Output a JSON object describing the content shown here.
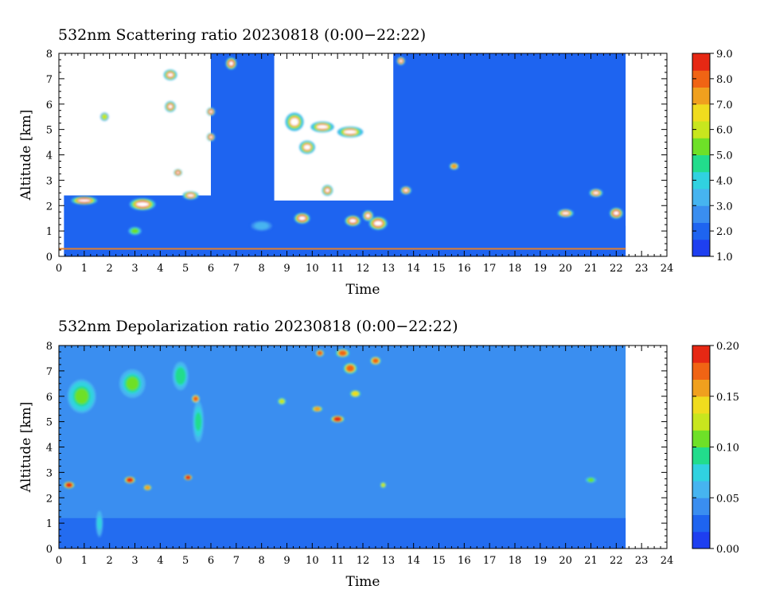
{
  "chart_data": [
    {
      "type": "heatmap",
      "title": "532nm Scattering ratio  20230818 (0:00−22:22)",
      "xlabel": "Time",
      "ylabel": "Altitude [km]",
      "xlim": [
        0,
        24
      ],
      "ylim": [
        0,
        8
      ],
      "x_ticks": [
        "0",
        "1",
        "2",
        "3",
        "4",
        "5",
        "6",
        "7",
        "8",
        "9",
        "10",
        "11",
        "12",
        "13",
        "14",
        "15",
        "16",
        "17",
        "18",
        "19",
        "20",
        "21",
        "22",
        "23",
        "24"
      ],
      "y_ticks": [
        "0",
        "1",
        "2",
        "3",
        "4",
        "5",
        "6",
        "7",
        "8"
      ],
      "data_end_time": 22.37,
      "colorbar": {
        "min": 1.0,
        "max": 9.0,
        "ticks": [
          "1.0",
          "2.0",
          "3.0",
          "4.0",
          "5.0",
          "6.0",
          "7.0",
          "8.0",
          "9.0"
        ],
        "colors": [
          "#1e3ff0",
          "#1e64f0",
          "#3a8ef0",
          "#46b4f0",
          "#30d2e0",
          "#22dc8c",
          "#6ee028",
          "#c8e61e",
          "#f0dc1e",
          "#f0a01e",
          "#f06414",
          "#e62814"
        ]
      },
      "background_level": 1.8,
      "clear_regions": [
        {
          "t0": 0.0,
          "t1": 6.0,
          "z0": 2.4,
          "z1": 8.0
        },
        {
          "t0": 8.5,
          "t1": 13.2,
          "z0": 2.2,
          "z1": 8.0
        },
        {
          "t0": 0.0,
          "t1": 0.2,
          "z0": 0.0,
          "z1": 8.0
        }
      ],
      "features": [
        {
          "t": 6.8,
          "z": 7.6,
          "w": 0.3,
          "h": 0.35,
          "v": 9
        },
        {
          "t": 9.3,
          "z": 5.3,
          "w": 0.6,
          "h": 0.6,
          "v": 8
        },
        {
          "t": 9.8,
          "z": 4.3,
          "w": 0.5,
          "h": 0.4,
          "v": 8
        },
        {
          "t": 9.6,
          "z": 1.5,
          "w": 0.5,
          "h": 0.3,
          "v": 9
        },
        {
          "t": 10.6,
          "z": 2.6,
          "w": 0.3,
          "h": 0.3,
          "v": 8
        },
        {
          "t": 10.4,
          "z": 5.1,
          "w": 0.8,
          "h": 0.3,
          "v": 8
        },
        {
          "t": 11.5,
          "z": 4.9,
          "w": 0.9,
          "h": 0.3,
          "v": 8
        },
        {
          "t": 11.6,
          "z": 1.4,
          "w": 0.5,
          "h": 0.3,
          "v": 9
        },
        {
          "t": 12.6,
          "z": 1.3,
          "w": 0.6,
          "h": 0.4,
          "v": 9
        },
        {
          "t": 12.2,
          "z": 1.6,
          "w": 0.3,
          "h": 0.3,
          "v": 8
        },
        {
          "t": 13.7,
          "z": 2.6,
          "w": 0.3,
          "h": 0.2,
          "v": 8
        },
        {
          "t": 13.5,
          "z": 7.7,
          "w": 0.2,
          "h": 0.2,
          "v": 8
        },
        {
          "t": 15.6,
          "z": 3.55,
          "w": 0.25,
          "h": 0.15,
          "v": 7
        },
        {
          "t": 20.0,
          "z": 1.7,
          "w": 0.5,
          "h": 0.2,
          "v": 8
        },
        {
          "t": 21.2,
          "z": 2.5,
          "w": 0.4,
          "h": 0.2,
          "v": 8
        },
        {
          "t": 22.0,
          "z": 1.7,
          "w": 0.4,
          "h": 0.3,
          "v": 9
        },
        {
          "t": 1.0,
          "z": 2.2,
          "w": 0.9,
          "h": 0.2,
          "v": 9
        },
        {
          "t": 3.3,
          "z": 2.05,
          "w": 0.9,
          "h": 0.35,
          "v": 9
        },
        {
          "t": 5.2,
          "z": 2.4,
          "w": 0.5,
          "h": 0.2,
          "v": 8
        },
        {
          "t": 4.4,
          "z": 7.15,
          "w": 0.4,
          "h": 0.3,
          "v": 8
        },
        {
          "t": 4.4,
          "z": 5.9,
          "w": 0.3,
          "h": 0.3,
          "v": 8
        },
        {
          "t": 6.0,
          "z": 4.7,
          "w": 0.2,
          "h": 0.2,
          "v": 8
        },
        {
          "t": 6.0,
          "z": 5.7,
          "w": 0.2,
          "h": 0.2,
          "v": 8
        },
        {
          "t": 4.7,
          "z": 3.3,
          "w": 0.2,
          "h": 0.15,
          "v": 8
        },
        {
          "t": 1.8,
          "z": 5.5,
          "w": 0.2,
          "h": 0.2,
          "v": 6
        },
        {
          "t": 3.0,
          "z": 1.0,
          "w": 0.4,
          "h": 0.2,
          "v": 5
        },
        {
          "t": 8.0,
          "z": 1.2,
          "w": 0.8,
          "h": 0.3,
          "v": 3.5
        }
      ]
    },
    {
      "type": "heatmap",
      "title": "532nm Depolarization ratio  20230818 (0:00−22:22)",
      "xlabel": "Time",
      "ylabel": "Altitude [km]",
      "xlim": [
        0,
        24
      ],
      "ylim": [
        0,
        8
      ],
      "x_ticks": [
        "0",
        "1",
        "2",
        "3",
        "4",
        "5",
        "6",
        "7",
        "8",
        "9",
        "10",
        "11",
        "12",
        "13",
        "14",
        "15",
        "16",
        "17",
        "18",
        "19",
        "20",
        "21",
        "22",
        "23",
        "24"
      ],
      "y_ticks": [
        "0",
        "1",
        "2",
        "3",
        "4",
        "5",
        "6",
        "7",
        "8"
      ],
      "data_end_time": 22.37,
      "colorbar": {
        "min": 0.0,
        "max": 0.2,
        "ticks": [
          "0.00",
          "0.05",
          "0.10",
          "0.15",
          "0.20"
        ],
        "colors": [
          "#1e3ff0",
          "#1e64f0",
          "#3a8ef0",
          "#46b4f0",
          "#30d2e0",
          "#22dc8c",
          "#6ee028",
          "#c8e61e",
          "#f0dc1e",
          "#f0a01e",
          "#f06414",
          "#e62814"
        ]
      },
      "background_level": 0.04,
      "features": [
        {
          "t": 2.8,
          "z": 2.7,
          "w": 0.3,
          "h": 0.15,
          "v": 0.2
        },
        {
          "t": 0.4,
          "z": 2.5,
          "w": 0.3,
          "h": 0.15,
          "v": 0.2
        },
        {
          "t": 5.1,
          "z": 2.8,
          "w": 0.2,
          "h": 0.1,
          "v": 0.2
        },
        {
          "t": 3.5,
          "z": 2.4,
          "w": 0.2,
          "h": 0.1,
          "v": 0.16
        },
        {
          "t": 5.4,
          "z": 5.9,
          "w": 0.2,
          "h": 0.2,
          "v": 0.17
        },
        {
          "t": 11.0,
          "z": 5.1,
          "w": 0.4,
          "h": 0.15,
          "v": 0.2
        },
        {
          "t": 11.5,
          "z": 7.1,
          "w": 0.4,
          "h": 0.3,
          "v": 0.18
        },
        {
          "t": 10.2,
          "z": 5.5,
          "w": 0.3,
          "h": 0.1,
          "v": 0.16
        },
        {
          "t": 12.5,
          "z": 7.4,
          "w": 0.3,
          "h": 0.2,
          "v": 0.17
        },
        {
          "t": 11.2,
          "z": 7.7,
          "w": 0.4,
          "h": 0.2,
          "v": 0.18
        },
        {
          "t": 10.3,
          "z": 7.7,
          "w": 0.2,
          "h": 0.15,
          "v": 0.18
        },
        {
          "t": 11.7,
          "z": 6.1,
          "w": 0.3,
          "h": 0.15,
          "v": 0.15
        },
        {
          "t": 0.9,
          "z": 6.0,
          "w": 1.0,
          "h": 1.2,
          "v": 0.11
        },
        {
          "t": 2.9,
          "z": 6.5,
          "w": 0.9,
          "h": 1.0,
          "v": 0.1
        },
        {
          "t": 4.8,
          "z": 6.8,
          "w": 0.5,
          "h": 1.0,
          "v": 0.095
        },
        {
          "t": 5.5,
          "z": 5.0,
          "w": 0.3,
          "h": 1.5,
          "v": 0.09
        },
        {
          "t": 1.6,
          "z": 1.0,
          "w": 0.15,
          "h": 1.0,
          "v": 0.07
        },
        {
          "t": 12.8,
          "z": 2.5,
          "w": 0.1,
          "h": 0.1,
          "v": 0.13
        },
        {
          "t": 21.0,
          "z": 2.7,
          "w": 0.3,
          "h": 0.1,
          "v": 0.1
        },
        {
          "t": 8.8,
          "z": 5.8,
          "w": 0.2,
          "h": 0.15,
          "v": 0.12
        }
      ]
    }
  ]
}
